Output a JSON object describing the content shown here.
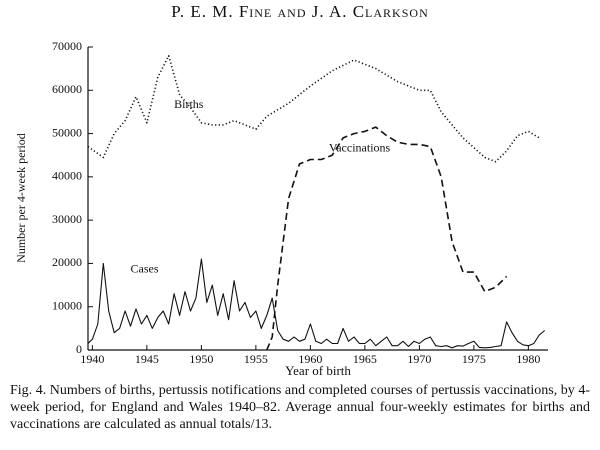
{
  "header": {
    "title": "P. E. M. Fine and J. A. Clarkson"
  },
  "caption": "Fig. 4. Numbers of births, pertussis notifications and completed courses of pertussis vaccinations, by 4-week period, for England and Wales 1940–82. Average annual four-weekly estimates for births and vaccinations are calculated as annual totals/13.",
  "chart_data": {
    "type": "line",
    "xlabel": "Year of birth",
    "ylabel": "Number per 4-week period",
    "xlim": [
      1939.6,
      1981.8
    ],
    "xticks": [
      1940,
      1945,
      1950,
      1955,
      1960,
      1965,
      1970,
      1975,
      1980
    ],
    "ylim": [
      0,
      70000
    ],
    "yticks": [
      0,
      10000,
      20000,
      30000,
      40000,
      50000,
      60000,
      70000
    ],
    "grid": false,
    "series": [
      {
        "name": "Births",
        "color": "#111111",
        "style": "dotted",
        "x": [
          1939.6,
          1941,
          1942,
          1943,
          1944,
          1945,
          1946,
          1947,
          1948,
          1949,
          1950,
          1951,
          1952,
          1953,
          1954,
          1955,
          1956,
          1958,
          1960,
          1962,
          1964,
          1966,
          1968,
          1970,
          1971,
          1972,
          1974,
          1976,
          1977,
          1978,
          1979,
          1980,
          1981
        ],
        "values": [
          47000,
          44500,
          50000,
          53000,
          58500,
          52500,
          63000,
          68000,
          59000,
          56000,
          52500,
          52000,
          52000,
          53000,
          52000,
          51000,
          54000,
          57000,
          61000,
          64500,
          67000,
          65000,
          62000,
          60000,
          60000,
          55000,
          49000,
          44500,
          43500,
          46000,
          49500,
          50500,
          49000
        ]
      },
      {
        "name": "Vaccinations",
        "color": "#111111",
        "style": "dashed",
        "x": [
          1956,
          1956.5,
          1957,
          1958,
          1959,
          1960,
          1961,
          1962,
          1963,
          1964,
          1965,
          1966,
          1967,
          1968,
          1969,
          1970,
          1971,
          1972,
          1973,
          1974,
          1975,
          1976,
          1977,
          1978
        ],
        "values": [
          0,
          3000,
          15000,
          35000,
          43000,
          44000,
          44000,
          45000,
          49000,
          50000,
          50500,
          51500,
          49500,
          48000,
          47500,
          47500,
          47000,
          40000,
          25000,
          18000,
          18000,
          13500,
          14500,
          17000
        ]
      },
      {
        "name": "Cases",
        "color": "#111111",
        "style": "solid",
        "x": [
          1939.6,
          1940,
          1940.5,
          1941,
          1941.5,
          1942,
          1942.5,
          1943,
          1943.5,
          1944,
          1944.5,
          1945,
          1945.5,
          1946,
          1946.5,
          1947,
          1947.5,
          1948,
          1948.5,
          1949,
          1949.5,
          1950,
          1950.5,
          1951,
          1951.5,
          1952,
          1952.5,
          1953,
          1953.5,
          1954,
          1954.5,
          1955,
          1955.5,
          1956,
          1956.5,
          1957,
          1957.5,
          1958,
          1958.5,
          1959,
          1959.5,
          1960,
          1960.5,
          1961,
          1961.5,
          1962,
          1962.5,
          1963,
          1963.5,
          1964,
          1964.5,
          1965,
          1965.5,
          1966,
          1966.5,
          1967,
          1967.5,
          1968,
          1968.5,
          1969,
          1969.5,
          1970,
          1970.5,
          1971,
          1971.5,
          1972,
          1972.5,
          1973,
          1973.5,
          1974,
          1974.5,
          1975,
          1975.5,
          1976,
          1976.5,
          1977,
          1977.5,
          1978,
          1978.5,
          1979,
          1979.5,
          1980,
          1980.5,
          1981,
          1981.5
        ],
        "values": [
          1500,
          2500,
          6000,
          20000,
          9000,
          4000,
          5000,
          9000,
          5500,
          9500,
          6000,
          8000,
          5000,
          7500,
          9000,
          6000,
          13000,
          8000,
          13500,
          9000,
          12000,
          21000,
          11000,
          15000,
          8000,
          13000,
          7000,
          16000,
          9000,
          11000,
          7500,
          9000,
          5000,
          8000,
          12000,
          4500,
          2500,
          2000,
          3000,
          2000,
          2500,
          6000,
          2000,
          1500,
          2500,
          1500,
          1500,
          5000,
          2000,
          3000,
          1500,
          1500,
          2500,
          1000,
          2000,
          3000,
          1000,
          1000,
          2000,
          800,
          2000,
          1500,
          2500,
          3000,
          1000,
          800,
          1000,
          500,
          1000,
          900,
          1500,
          2000,
          600,
          500,
          600,
          800,
          1000,
          6500,
          4000,
          2000,
          1200,
          1000,
          1500,
          3500,
          4500
        ]
      }
    ]
  }
}
